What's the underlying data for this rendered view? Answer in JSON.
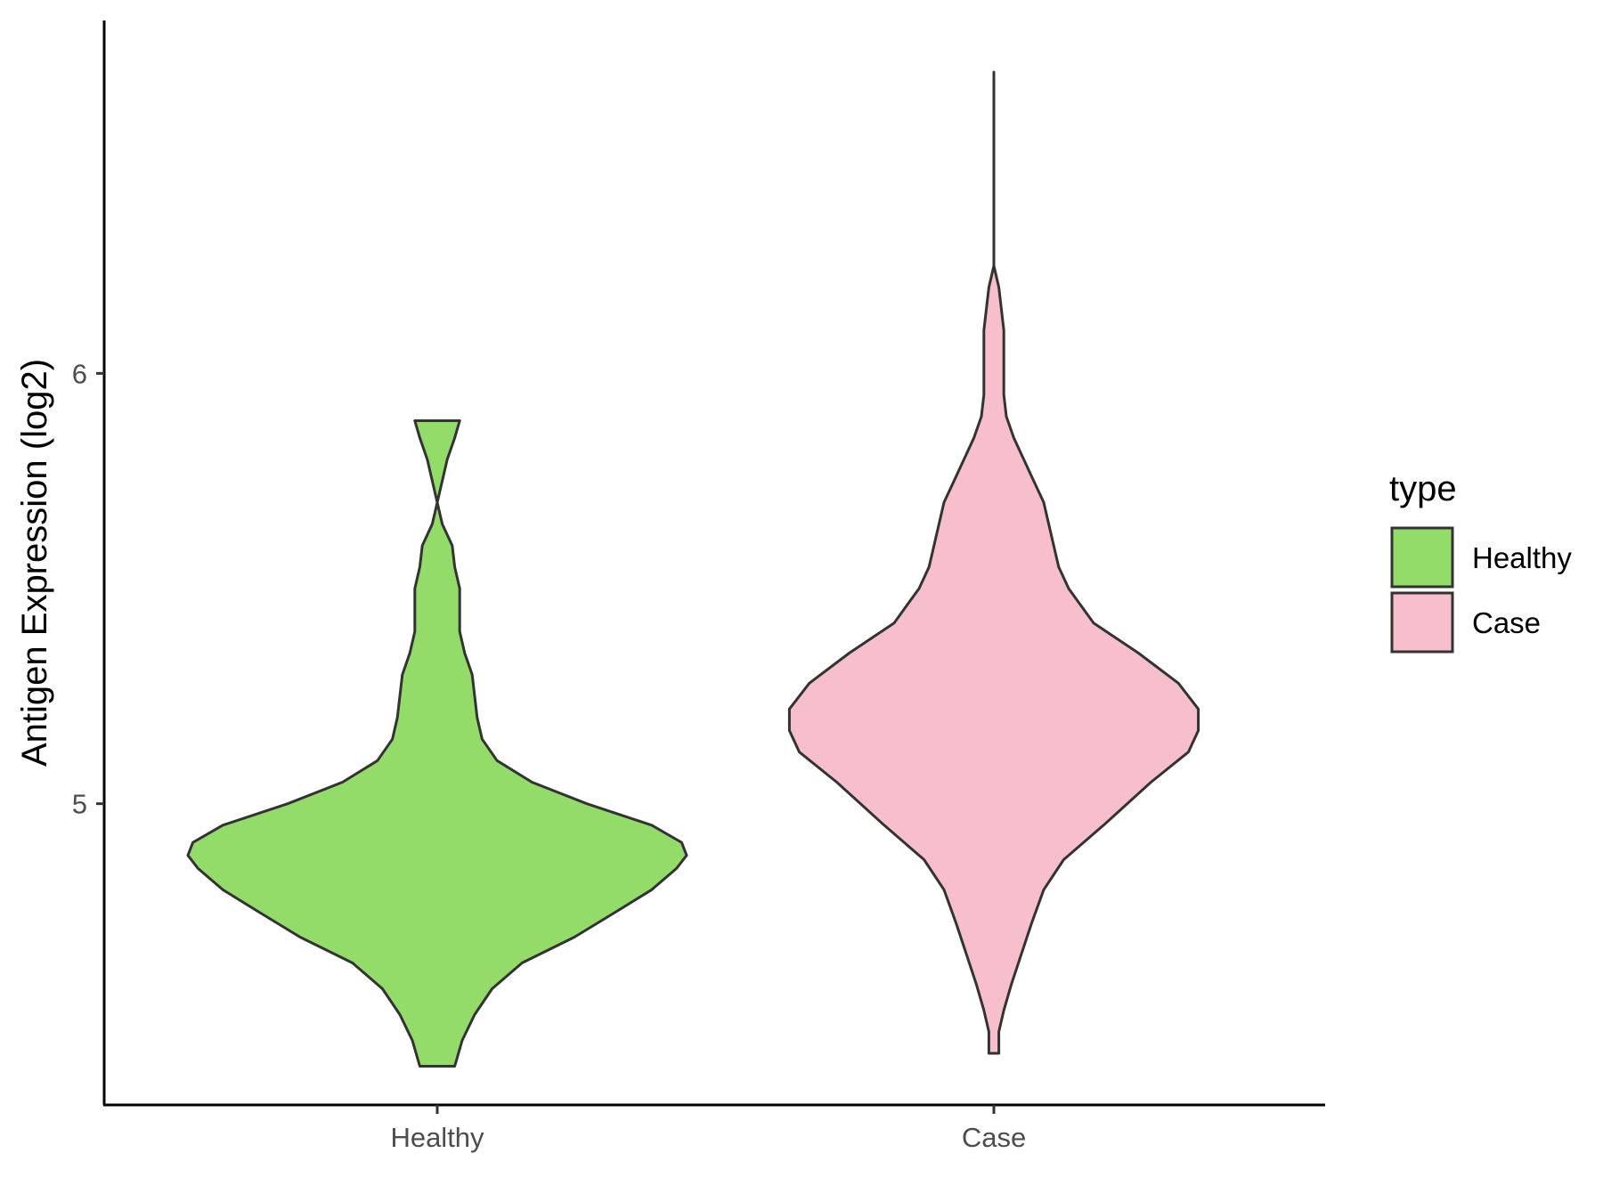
{
  "chart_data": {
    "type": "violin",
    "ylabel": "Antigen Expression (log2)",
    "xlabel": "",
    "ylim": [
      4.3,
      6.82
    ],
    "yticks": [
      5,
      6
    ],
    "categories": [
      "Healthy",
      "Case"
    ],
    "legend": {
      "title": "type",
      "position": "right",
      "entries": [
        "Healthy",
        "Case"
      ]
    },
    "series": [
      {
        "name": "Healthy",
        "color": "#93dc6a",
        "min": 4.39,
        "max": 5.89,
        "density": [
          [
            4.39,
            0.07
          ],
          [
            4.45,
            0.1
          ],
          [
            4.51,
            0.15
          ],
          [
            4.57,
            0.22
          ],
          [
            4.63,
            0.34
          ],
          [
            4.69,
            0.55
          ],
          [
            4.75,
            0.72
          ],
          [
            4.8,
            0.86
          ],
          [
            4.85,
            0.96
          ],
          [
            4.88,
            1.0
          ],
          [
            4.91,
            0.98
          ],
          [
            4.95,
            0.86
          ],
          [
            5.0,
            0.6
          ],
          [
            5.05,
            0.38
          ],
          [
            5.1,
            0.24
          ],
          [
            5.15,
            0.18
          ],
          [
            5.2,
            0.16
          ],
          [
            5.25,
            0.15
          ],
          [
            5.3,
            0.14
          ],
          [
            5.35,
            0.11
          ],
          [
            5.4,
            0.09
          ],
          [
            5.45,
            0.09
          ],
          [
            5.5,
            0.09
          ],
          [
            5.55,
            0.07
          ],
          [
            5.6,
            0.06
          ],
          [
            5.65,
            0.02
          ],
          [
            5.7,
            0.0
          ],
          [
            5.75,
            0.02
          ],
          [
            5.8,
            0.04
          ],
          [
            5.85,
            0.07
          ],
          [
            5.89,
            0.09
          ]
        ]
      },
      {
        "name": "Case",
        "color": "#f7bfcb",
        "min": 4.42,
        "max": 6.7,
        "density": [
          [
            4.42,
            0.02
          ],
          [
            4.47,
            0.02
          ],
          [
            4.52,
            0.04
          ],
          [
            4.58,
            0.07
          ],
          [
            4.65,
            0.11
          ],
          [
            4.72,
            0.15
          ],
          [
            4.8,
            0.2
          ],
          [
            4.87,
            0.28
          ],
          [
            4.95,
            0.44
          ],
          [
            5.05,
            0.63
          ],
          [
            5.12,
            0.78
          ],
          [
            5.17,
            0.82
          ],
          [
            5.22,
            0.82
          ],
          [
            5.28,
            0.74
          ],
          [
            5.35,
            0.58
          ],
          [
            5.42,
            0.4
          ],
          [
            5.5,
            0.3
          ],
          [
            5.55,
            0.26
          ],
          [
            5.6,
            0.24
          ],
          [
            5.65,
            0.22
          ],
          [
            5.7,
            0.2
          ],
          [
            5.75,
            0.16
          ],
          [
            5.8,
            0.12
          ],
          [
            5.85,
            0.08
          ],
          [
            5.9,
            0.05
          ],
          [
            5.95,
            0.04
          ],
          [
            6.0,
            0.04
          ],
          [
            6.05,
            0.04
          ],
          [
            6.1,
            0.04
          ],
          [
            6.15,
            0.03
          ],
          [
            6.2,
            0.02
          ],
          [
            6.25,
            0.0
          ],
          [
            6.35,
            0.0
          ],
          [
            6.5,
            0.0
          ],
          [
            6.6,
            0.0
          ],
          [
            6.7,
            0.0
          ]
        ]
      }
    ]
  }
}
